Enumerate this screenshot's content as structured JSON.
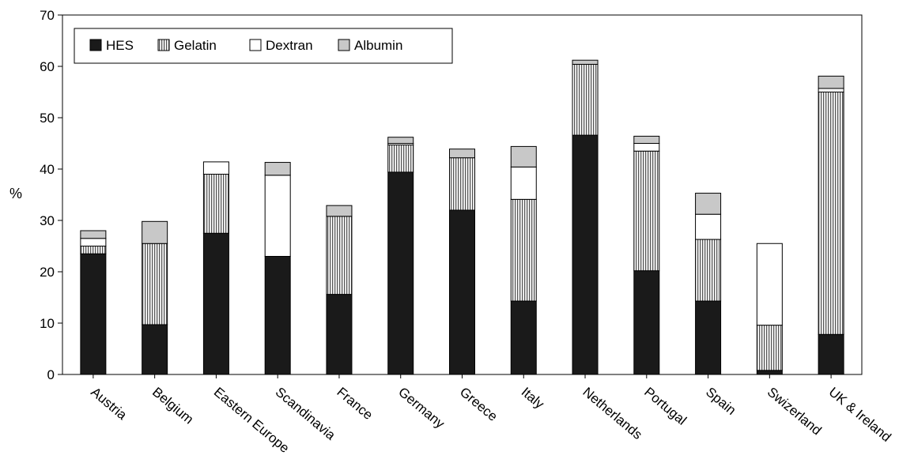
{
  "chart_data": {
    "type": "bar",
    "stacked": true,
    "title": "",
    "xlabel": "",
    "ylabel": "%",
    "ylim": [
      0,
      70
    ],
    "yticks": [
      0,
      10,
      20,
      30,
      40,
      50,
      60,
      70
    ],
    "grid": false,
    "legend_position": "top-left",
    "categories": [
      "Austria",
      "Belgium",
      "Eastern Europe",
      "Scandinavia",
      "France",
      "Germany",
      "Greece",
      "Italy",
      "Netherlands",
      "Portugal",
      "Spain",
      "Swizerland",
      "UK & Ireland"
    ],
    "series": [
      {
        "name": "HES",
        "pattern": "solid-black",
        "color": "#1a1a1a",
        "values": [
          23.5,
          9.7,
          27.5,
          23.0,
          15.6,
          39.4,
          32.0,
          14.3,
          46.6,
          20.2,
          14.3,
          0.8,
          7.8
        ]
      },
      {
        "name": "Gelatin",
        "pattern": "vertical-stripes",
        "color": "#9a9a9a",
        "values": [
          1.5,
          15.8,
          11.5,
          0.0,
          15.2,
          5.3,
          10.2,
          19.8,
          13.8,
          23.3,
          12.0,
          8.8,
          47.2
        ]
      },
      {
        "name": "Dextran",
        "pattern": "white",
        "color": "#ffffff",
        "values": [
          1.5,
          0.0,
          2.4,
          15.8,
          0.0,
          0.3,
          0.0,
          6.3,
          0.0,
          1.5,
          4.9,
          15.9,
          0.7
        ]
      },
      {
        "name": "Albumin",
        "pattern": "light-gray",
        "color": "#c8c8c8",
        "values": [
          1.5,
          4.3,
          0.0,
          2.5,
          2.1,
          1.2,
          1.7,
          4.0,
          0.8,
          1.4,
          4.1,
          0.0,
          2.4
        ]
      }
    ]
  }
}
